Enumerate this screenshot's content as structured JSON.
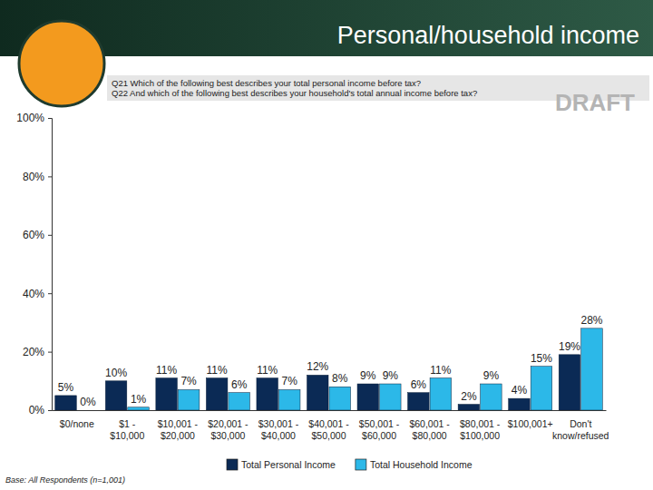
{
  "chart_data": {
    "type": "bar",
    "title": "Personal/household income",
    "subtitle": [
      "Q21  Which of the following best describes your total personal income before tax?",
      "Q22  And which of the following best describes your household's total annual income before tax?"
    ],
    "watermark": "DRAFT",
    "note": "Base: All Respondents (n=1,001)",
    "categories": [
      "$0/none",
      "$1 - $10,000",
      "$10,001 - $20,000",
      "$20,001 - $30,000",
      "$30,001 - $40,000",
      "$40,001 - $50,000",
      "$50,001 - $60,000",
      "$60,001 - $80,000",
      "$80,001 - $100,000",
      "$100,001+",
      "Don't know/refused"
    ],
    "series": [
      {
        "name": "Total Personal Income",
        "color": "#0b2a55",
        "values": [
          5,
          10,
          11,
          11,
          11,
          12,
          9,
          6,
          2,
          4,
          19
        ],
        "value_labels": [
          "5%",
          "10%",
          "11%",
          "11%",
          "11%",
          "12%",
          "9%",
          "6%",
          "2%",
          "4%",
          "19%"
        ]
      },
      {
        "name": "Total Household Income",
        "color": "#2cb8e8",
        "values": [
          0,
          1,
          7,
          6,
          7,
          8,
          9,
          11,
          9,
          15,
          28
        ],
        "value_labels": [
          "0%",
          "1%",
          "7%",
          "6%",
          "7%",
          "8%",
          "9%",
          "11%",
          "9%",
          "15%",
          "28%"
        ]
      }
    ],
    "ylim": [
      0,
      100
    ],
    "yticks": [
      {
        "value": 0,
        "label": "0%"
      },
      {
        "value": 20,
        "label": "20%"
      },
      {
        "value": 40,
        "label": "40%"
      },
      {
        "value": 60,
        "label": "60%"
      },
      {
        "value": 80,
        "label": "80%"
      },
      {
        "value": 100,
        "label": "100%"
      }
    ],
    "grid": false,
    "legend": "bottom",
    "data_labels": true
  }
}
